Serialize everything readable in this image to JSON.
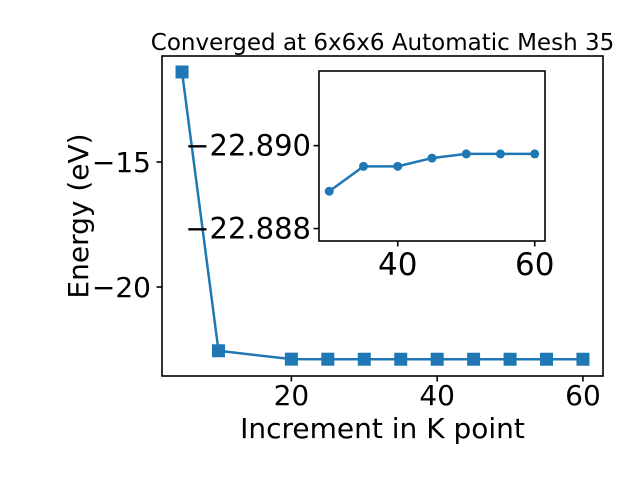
{
  "chart_data": {
    "type": "line",
    "title": "Converged at 6x6x6 Automatic Mesh 35",
    "xlabel": "Increment in K point",
    "ylabel": "Energy (eV)",
    "line_color": "#1f77b4",
    "background_color": "#ffffff",
    "grid": "off",
    "legend": "none",
    "main": {
      "marker": "square",
      "x": [
        5,
        10,
        20,
        25,
        30,
        35,
        40,
        45,
        50,
        55,
        60
      ],
      "y": [
        -11.4,
        -22.55,
        -22.886,
        -22.888,
        -22.8889,
        -22.8895,
        -22.8895,
        -22.8897,
        -22.8898,
        -22.8898,
        -22.8898
      ],
      "xlim": [
        2.25,
        62.75
      ],
      "ylim": [
        -23.56,
        -10.76
      ],
      "xticks": [
        20,
        40,
        60
      ],
      "xtick_labels": [
        "20",
        "40",
        "60"
      ],
      "yticks": [
        -15,
        -20
      ],
      "ytick_labels": [
        "−15",
        "−20"
      ]
    },
    "inset": {
      "marker": "circle",
      "x": [
        30,
        35,
        40,
        45,
        50,
        55,
        60
      ],
      "y": [
        -22.8889,
        -22.8895,
        -22.8895,
        -22.8897,
        -22.8898,
        -22.8898,
        -22.8898
      ],
      "xlim": [
        28.5,
        61.5
      ],
      "ylim_top": -22.8918,
      "ylim_bottom": -22.8877,
      "y_axis_inverted": true,
      "xticks": [
        40,
        60
      ],
      "xtick_labels": [
        "40",
        "60"
      ],
      "yticks": [
        -22.89,
        -22.888
      ],
      "ytick_labels": [
        "−22.890",
        "−22.888"
      ]
    }
  }
}
